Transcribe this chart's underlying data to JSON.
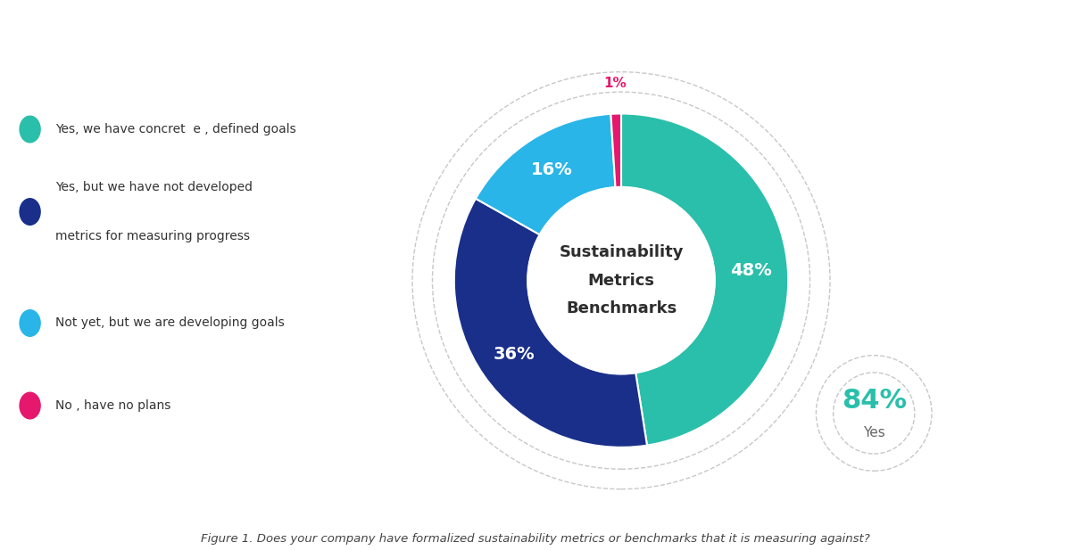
{
  "slices": [
    48,
    36,
    16,
    1
  ],
  "colors": [
    "#2abfaa",
    "#1a2f8a",
    "#29b5e8",
    "#e5186e"
  ],
  "labels": [
    "48%",
    "36%",
    "16%",
    "1%"
  ],
  "legend_labels": [
    "Yes, we have concret  e , defined goals",
    "Yes, but we have not developed\nmetrics for measuring progress",
    "Not yet, but we are developing goals",
    "No , have no plans"
  ],
  "center_text_lines": [
    "Sustainability",
    "Metrics",
    "Benchmarks"
  ],
  "center_text_color": "#2d2d2d",
  "donut_inner_ratio": 0.56,
  "annotation_84_text": "84%",
  "annotation_84_sub": "Yes",
  "annotation_84_color": "#2abfaa",
  "annotation_84_sub_color": "#666666",
  "figure_caption": "Figure 1. Does your company have formalized sustainability metrics or benchmarks that it is measuring against?",
  "bg_color": "#ffffff",
  "slice_label_colors": [
    "#ffffff",
    "#ffffff",
    "#ffffff",
    "#e5186e"
  ],
  "slice_label_fontsizes": [
    14,
    14,
    14,
    11
  ]
}
